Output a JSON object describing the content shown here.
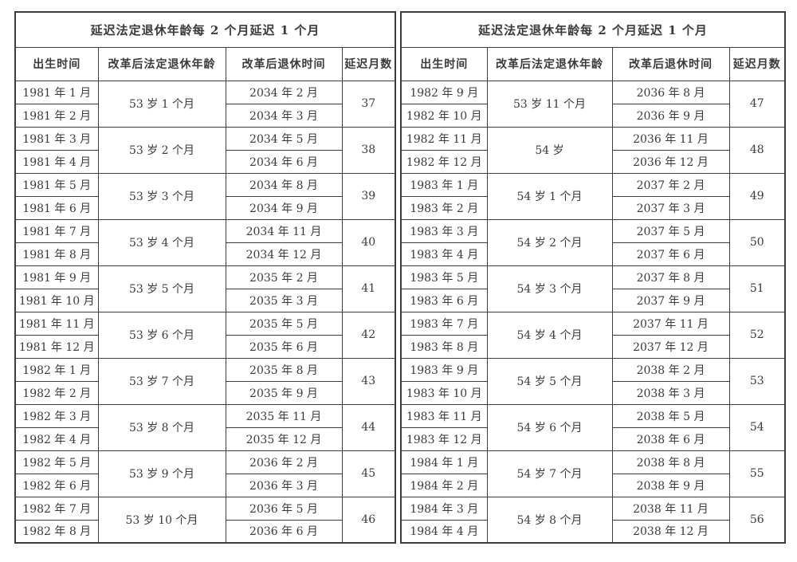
{
  "page": {
    "background_color": "#ffffff",
    "text_color": "#3a3a3a",
    "border_color": "#3c3c3c"
  },
  "tables": [
    {
      "title": "延迟法定退休年龄每 2 个月延迟 1 个月",
      "headers": [
        "出生时间",
        "改革后法定退休年龄",
        "改革后退休时间",
        "延迟月数"
      ],
      "groups": [
        {
          "birth": [
            "1981 年 1 月",
            "1981 年 2 月"
          ],
          "age": "53 岁 1 个月",
          "retire": [
            "2034 年 2 月",
            "2034 年 3 月"
          ],
          "delay": "37"
        },
        {
          "birth": [
            "1981 年 3 月",
            "1981 年 4 月"
          ],
          "age": "53 岁 2 个月",
          "retire": [
            "2034 年 5 月",
            "2034 年 6 月"
          ],
          "delay": "38"
        },
        {
          "birth": [
            "1981 年 5 月",
            "1981 年 6 月"
          ],
          "age": "53 岁 3 个月",
          "retire": [
            "2034 年 8 月",
            "2034 年 9 月"
          ],
          "delay": "39"
        },
        {
          "birth": [
            "1981 年 7 月",
            "1981 年 8 月"
          ],
          "age": "53 岁 4 个月",
          "retire": [
            "2034 年 11 月",
            "2034 年 12 月"
          ],
          "delay": "40"
        },
        {
          "birth": [
            "1981 年 9 月",
            "1981 年 10 月"
          ],
          "age": "53 岁 5 个月",
          "retire": [
            "2035 年 2 月",
            "2035 年 3 月"
          ],
          "delay": "41"
        },
        {
          "birth": [
            "1981 年 11 月",
            "1981 年 12 月"
          ],
          "age": "53 岁 6 个月",
          "retire": [
            "2035 年 5 月",
            "2035 年 6 月"
          ],
          "delay": "42"
        },
        {
          "birth": [
            "1982 年 1 月",
            "1982 年 2 月"
          ],
          "age": "53 岁 7 个月",
          "retire": [
            "2035 年 8 月",
            "2035 年 9 月"
          ],
          "delay": "43"
        },
        {
          "birth": [
            "1982 年 3 月",
            "1982 年 4 月"
          ],
          "age": "53 岁 8 个月",
          "retire": [
            "2035 年 11 月",
            "2035 年 12 月"
          ],
          "delay": "44"
        },
        {
          "birth": [
            "1982 年 5 月",
            "1982 年 6 月"
          ],
          "age": "53 岁 9 个月",
          "retire": [
            "2036 年 2 月",
            "2036 年 3 月"
          ],
          "delay": "45"
        },
        {
          "birth": [
            "1982 年 7 月",
            "1982 年 8 月"
          ],
          "age": "53 岁 10 个月",
          "retire": [
            "2036 年 5 月",
            "2036 年 6 月"
          ],
          "delay": "46"
        }
      ]
    },
    {
      "title": "延迟法定退休年龄每 2 个月延迟 1 个月",
      "headers": [
        "出生时间",
        "改革后法定退休年龄",
        "改革后退休时间",
        "延迟月数"
      ],
      "groups": [
        {
          "birth": [
            "1982 年 9 月",
            "1982 年 10 月"
          ],
          "age": "53 岁 11 个月",
          "retire": [
            "2036 年 8 月",
            "2036 年 9 月"
          ],
          "delay": "47"
        },
        {
          "birth": [
            "1982 年 11 月",
            "1982 年 12 月"
          ],
          "age": "54 岁",
          "retire": [
            "2036 年 11 月",
            "2036 年 12 月"
          ],
          "delay": "48"
        },
        {
          "birth": [
            "1983 年 1 月",
            "1983 年 2 月"
          ],
          "age": "54 岁 1 个月",
          "retire": [
            "2037 年 2 月",
            "2037 年 3 月"
          ],
          "delay": "49"
        },
        {
          "birth": [
            "1983 年 3 月",
            "1983 年 4 月"
          ],
          "age": "54 岁 2 个月",
          "retire": [
            "2037 年 5 月",
            "2037 年 6 月"
          ],
          "delay": "50"
        },
        {
          "birth": [
            "1983 年 5 月",
            "1983 年 6 月"
          ],
          "age": "54 岁 3 个月",
          "retire": [
            "2037 年 8 月",
            "2037 年 9 月"
          ],
          "delay": "51"
        },
        {
          "birth": [
            "1983 年 7 月",
            "1983 年 8 月"
          ],
          "age": "54 岁 4 个月",
          "retire": [
            "2037 年 11 月",
            "2037 年 12 月"
          ],
          "delay": "52"
        },
        {
          "birth": [
            "1983 年 9 月",
            "1983 年 10 月"
          ],
          "age": "54 岁 5 个月",
          "retire": [
            "2038 年 2 月",
            "2038 年 3 月"
          ],
          "delay": "53"
        },
        {
          "birth": [
            "1983 年 11 月",
            "1983 年 12 月"
          ],
          "age": "54 岁 6 个月",
          "retire": [
            "2038 年 5 月",
            "2038 年 6 月"
          ],
          "delay": "54"
        },
        {
          "birth": [
            "1984 年 1 月",
            "1984 年 2 月"
          ],
          "age": "54 岁 7 个月",
          "retire": [
            "2038 年 8 月",
            "2038 年 9 月"
          ],
          "delay": "55"
        },
        {
          "birth": [
            "1984 年 3 月",
            "1984 年 4 月"
          ],
          "age": "54 岁 8 个月",
          "retire": [
            "2038 年 11 月",
            "2038 年 12 月"
          ],
          "delay": "56"
        }
      ]
    }
  ]
}
